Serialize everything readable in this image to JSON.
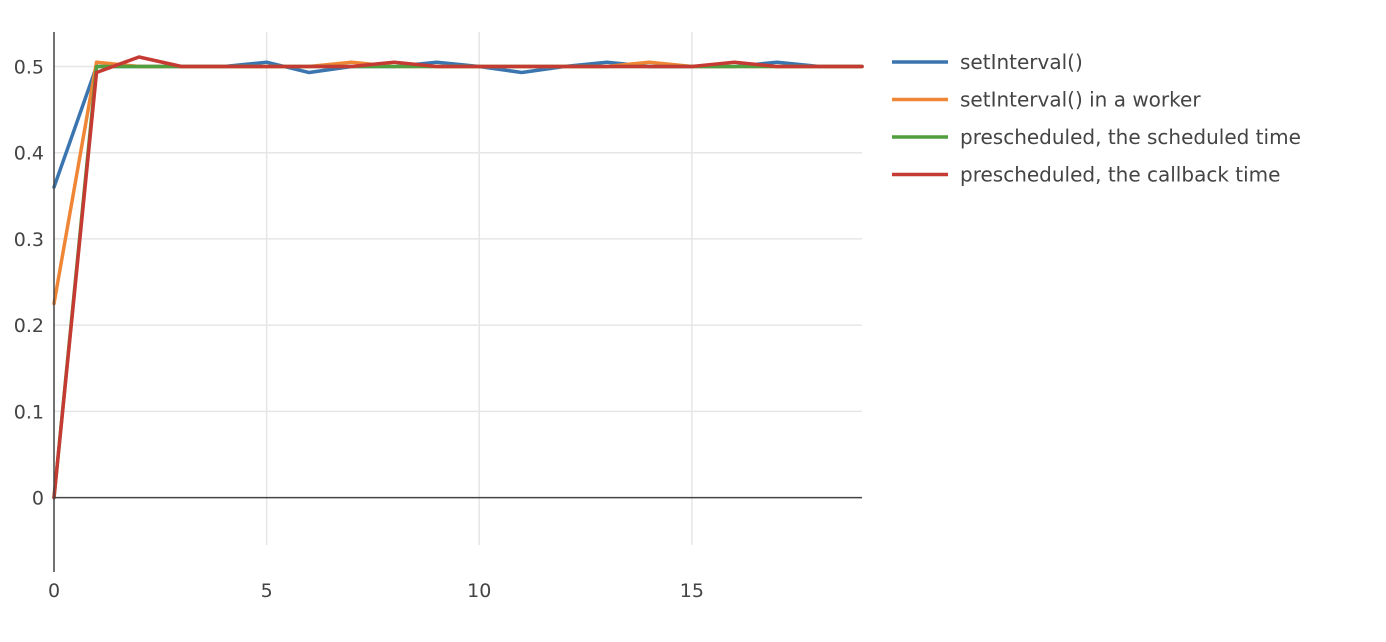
{
  "chart_data": {
    "type": "line",
    "title": "",
    "xlabel": "",
    "ylabel": "",
    "xlim": [
      0,
      19
    ],
    "ylim": [
      -0.055,
      0.54
    ],
    "x_ticks": [
      0,
      5,
      10,
      15
    ],
    "x_tick_labels": [
      "0",
      "5",
      "10",
      "15"
    ],
    "y_ticks": [
      0,
      0.1,
      0.2,
      0.3,
      0.4,
      0.5
    ],
    "y_tick_labels": [
      "0",
      "0.1",
      "0.2",
      "0.3",
      "0.4",
      "0.5"
    ],
    "grid": true,
    "legend_position": "top-right",
    "x": [
      0,
      1,
      2,
      3,
      4,
      5,
      6,
      7,
      8,
      9,
      10,
      11,
      12,
      13,
      14,
      15,
      16,
      17,
      18,
      19
    ],
    "series": [
      {
        "name": "setInterval()",
        "color": "#3b75af",
        "values": [
          0.36,
          0.5,
          0.5,
          0.5,
          0.5,
          0.505,
          0.493,
          0.5,
          0.5,
          0.505,
          0.5,
          0.493,
          0.5,
          0.505,
          0.5,
          0.5,
          0.5,
          0.505,
          0.5,
          0.5
        ]
      },
      {
        "name": "setInterval() in a worker",
        "color": "#ef8636",
        "values": [
          0.225,
          0.505,
          0.5,
          0.5,
          0.5,
          0.5,
          0.5,
          0.505,
          0.5,
          0.5,
          0.5,
          0.5,
          0.5,
          0.5,
          0.505,
          0.5,
          0.5,
          0.5,
          0.5,
          0.5
        ]
      },
      {
        "name": "prescheduled, the scheduled time",
        "color": "#519e3e",
        "values": [
          0,
          0.5,
          0.5,
          0.5,
          0.5,
          0.5,
          0.5,
          0.5,
          0.5,
          0.5,
          0.5,
          0.5,
          0.5,
          0.5,
          0.5,
          0.5,
          0.5,
          0.5,
          0.5,
          0.5
        ]
      },
      {
        "name": "prescheduled, the callback time",
        "color": "#c53a32",
        "values": [
          0,
          0.493,
          0.511,
          0.5,
          0.5,
          0.5,
          0.5,
          0.5,
          0.505,
          0.5,
          0.5,
          0.5,
          0.5,
          0.5,
          0.5,
          0.5,
          0.505,
          0.5,
          0.5,
          0.5
        ]
      }
    ]
  }
}
